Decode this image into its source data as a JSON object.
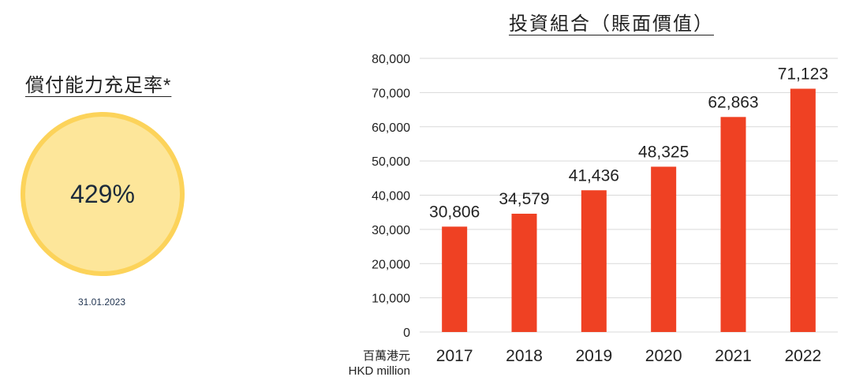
{
  "solvency": {
    "title": "償付能力充足率*",
    "value": "429%",
    "date": "31.01.2023"
  },
  "colors": {
    "bar": "#ef4123",
    "circle_fill": "#fde69a",
    "circle_border": "#fcd35a",
    "gridline": "#d9d9d9"
  },
  "unit": {
    "zh": "百萬港元",
    "en": "HKD million"
  },
  "chart_data": {
    "type": "bar",
    "title": "投資組合（賬面價值）",
    "categories": [
      "2017",
      "2018",
      "2019",
      "2020",
      "2021",
      "2022"
    ],
    "values": [
      30806,
      34579,
      41436,
      48325,
      62863,
      71123
    ],
    "value_labels": [
      "30,806",
      "34,579",
      "41,436",
      "48,325",
      "62,863",
      "71,123"
    ],
    "y_ticks": [
      "0",
      "10,000",
      "20,000",
      "30,000",
      "40,000",
      "50,000",
      "60,000",
      "70,000",
      "80,000"
    ],
    "ylim": [
      0,
      80000
    ],
    "grid": true,
    "legend": "none"
  }
}
